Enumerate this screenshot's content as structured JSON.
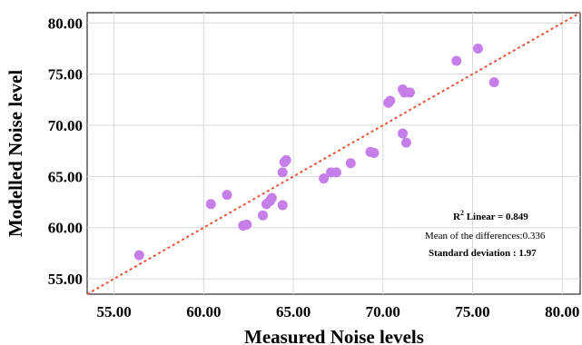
{
  "chart_data": {
    "type": "scatter",
    "xlabel": "Measured Noise levels",
    "ylabel": "Modelled Noise level",
    "xlim": [
      53.5,
      81.0
    ],
    "ylim": [
      53.5,
      81.0
    ],
    "xticks": [
      "55.00",
      "60.00",
      "65.00",
      "70.00",
      "75.00",
      "80.00"
    ],
    "yticks": [
      "55.00",
      "60.00",
      "65.00",
      "70.00",
      "75.00",
      "80.00"
    ],
    "tick_values": [
      55,
      60,
      65,
      70,
      75,
      80
    ],
    "grid": true,
    "marker_color": "#c67ee8",
    "fit_line": {
      "style": "dotted",
      "color": "#e8543a",
      "from": [
        53.5,
        53.5
      ],
      "to": [
        81.0,
        81.0
      ]
    },
    "points": [
      [
        56.4,
        57.3
      ],
      [
        60.4,
        62.3
      ],
      [
        61.3,
        63.2
      ],
      [
        62.2,
        60.2
      ],
      [
        62.4,
        60.3
      ],
      [
        63.3,
        61.2
      ],
      [
        63.5,
        62.3
      ],
      [
        63.8,
        62.9
      ],
      [
        63.7,
        62.6
      ],
      [
        64.4,
        62.2
      ],
      [
        64.4,
        65.4
      ],
      [
        64.5,
        66.4
      ],
      [
        64.6,
        66.6
      ],
      [
        66.7,
        64.8
      ],
      [
        67.1,
        65.4
      ],
      [
        67.4,
        65.4
      ],
      [
        68.2,
        66.3
      ],
      [
        69.3,
        67.4
      ],
      [
        69.5,
        67.3
      ],
      [
        70.3,
        72.2
      ],
      [
        70.4,
        72.4
      ],
      [
        71.1,
        69.2
      ],
      [
        71.3,
        68.3
      ],
      [
        71.1,
        73.5
      ],
      [
        71.2,
        73.2
      ],
      [
        71.5,
        73.2
      ],
      [
        74.1,
        76.3
      ],
      [
        75.3,
        77.5
      ],
      [
        76.2,
        74.2
      ]
    ],
    "annotations": {
      "r2_label": "R",
      "r2_sup": "2",
      "r2_rest": " Linear = 0.849",
      "mean_diff": "Mean of the differences:0.336",
      "std_dev": "Standard deviation : 1.97"
    }
  }
}
